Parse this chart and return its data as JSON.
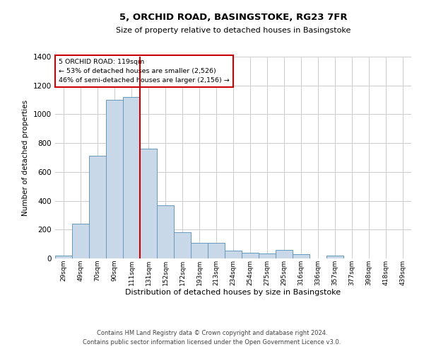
{
  "title_line1": "5, ORCHID ROAD, BASINGSTOKE, RG23 7FR",
  "title_line2": "Size of property relative to detached houses in Basingstoke",
  "xlabel": "Distribution of detached houses by size in Basingstoke",
  "ylabel": "Number of detached properties",
  "footer_line1": "Contains HM Land Registry data © Crown copyright and database right 2024.",
  "footer_line2": "Contains public sector information licensed under the Open Government Licence v3.0.",
  "annotation_line1": "5 ORCHID ROAD: 119sqm",
  "annotation_line2": "← 53% of detached houses are smaller (2,526)",
  "annotation_line3": "46% of semi-detached houses are larger (2,156) →",
  "bar_labels": [
    "29sqm",
    "49sqm",
    "70sqm",
    "90sqm",
    "111sqm",
    "131sqm",
    "152sqm",
    "172sqm",
    "193sqm",
    "213sqm",
    "234sqm",
    "254sqm",
    "275sqm",
    "295sqm",
    "316sqm",
    "336sqm",
    "357sqm",
    "377sqm",
    "398sqm",
    "418sqm",
    "439sqm"
  ],
  "bar_values": [
    20,
    240,
    710,
    1100,
    1120,
    760,
    370,
    180,
    110,
    110,
    55,
    40,
    35,
    60,
    30,
    0,
    20,
    0,
    0,
    0,
    0
  ],
  "bar_color": "#c8d8e8",
  "bar_edge_color": "#6699bb",
  "vline_x_index": 4.5,
  "vline_color": "#cc0000",
  "ylim": [
    0,
    1400
  ],
  "yticks": [
    0,
    200,
    400,
    600,
    800,
    1000,
    1200,
    1400
  ],
  "grid_color": "#cccccc",
  "annotation_box_edge_color": "#cc0000",
  "bg_color": "#f0f4f8"
}
